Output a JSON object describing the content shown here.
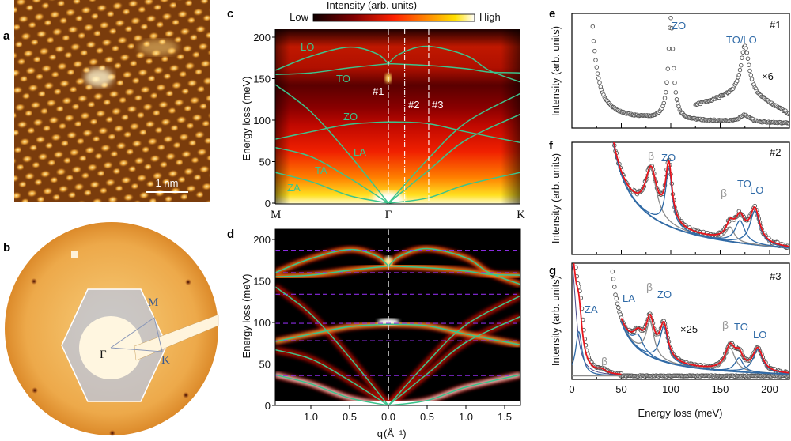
{
  "panel_labels": {
    "a": "a",
    "b": "b",
    "c": "c",
    "d": "d",
    "e": "e",
    "f": "f",
    "g": "g"
  },
  "panel_a": {
    "scale_bar_label": "1 nm"
  },
  "panel_b": {
    "gamma": "Γ",
    "m": "M",
    "k": "K"
  },
  "colors": {
    "dispersion": "#3cc48c",
    "fit": "#e8141c",
    "component": "#2f6aa7",
    "beta": "#8a8a8a",
    "reference": "#8a2be2"
  },
  "chart_data": [
    {
      "id": "c",
      "type": "heatmap",
      "title": "Intensity (arb. units)",
      "colorbar_low": "Low",
      "colorbar_high": "High",
      "ylabel": "Energy loss (meV)",
      "ylim": [
        0,
        210
      ],
      "yticks": [
        "0",
        "50",
        "100",
        "150",
        "200"
      ],
      "x_labels": [
        "M",
        "Γ",
        "K"
      ],
      "q_range": [
        -1.46,
        1.7
      ],
      "branches": [
        {
          "name": "LO",
          "q": [
            -1.46,
            -1.0,
            -0.5,
            -0.15,
            0,
            0.15,
            0.5,
            1.0,
            1.3,
            1.7
          ],
          "E": [
            160,
            177,
            188,
            180,
            168,
            180,
            189,
            178,
            160,
            146
          ]
        },
        {
          "name": "TO",
          "q": [
            -1.46,
            -1.0,
            -0.5,
            0,
            0.5,
            1.0,
            1.3,
            1.7
          ],
          "E": [
            155,
            157,
            163,
            168,
            166,
            162,
            158,
            157
          ]
        },
        {
          "name": "ZO",
          "q": [
            -1.46,
            -1.0,
            -0.5,
            0,
            0.5,
            1.0,
            1.7
          ],
          "E": [
            77,
            86,
            95,
            98,
            96,
            86,
            73
          ]
        },
        {
          "name": "LA",
          "q": [
            -1.46,
            -1.0,
            -0.5,
            0,
            0.5,
            1.0,
            1.7
          ],
          "E": [
            143,
            110,
            58,
            0,
            52,
            97,
            132
          ]
        },
        {
          "name": "TA",
          "q": [
            -1.46,
            -1.0,
            -0.5,
            0,
            0.5,
            1.0,
            1.7
          ],
          "E": [
            67,
            56,
            30,
            0,
            38,
            76,
            107
          ]
        },
        {
          "name": "ZA",
          "q": [
            -1.46,
            -1.0,
            -0.5,
            0,
            0.5,
            1.0,
            1.7
          ],
          "E": [
            37,
            26,
            9,
            0,
            6,
            22,
            37
          ]
        }
      ],
      "cut_lines": [
        {
          "label": "#1",
          "q": 0
        },
        {
          "label": "#2",
          "q": 0.21
        },
        {
          "label": "#3",
          "q": 0.52
        }
      ]
    },
    {
      "id": "d",
      "type": "heatmap",
      "ylabel": "Energy loss (meV)",
      "ylim": [
        0,
        210
      ],
      "yticks": [
        "0",
        "50",
        "100",
        "150",
        "200"
      ],
      "xlabel_symbol": "q",
      "xlabel_unit": " (Å⁻¹)",
      "xticks": [
        {
          "q": -1.0,
          "label": "1.0"
        },
        {
          "q": -0.5,
          "label": "0.5"
        },
        {
          "q": 0,
          "label": "0.0"
        },
        {
          "q": 0.5,
          "label": "0.5"
        },
        {
          "q": 1.0,
          "label": "1.0"
        },
        {
          "q": 1.5,
          "label": "1.5"
        }
      ],
      "reference_energies": [
        187,
        160,
        134,
        99,
        78,
        36
      ]
    },
    {
      "id": "e",
      "type": "scatter",
      "label": "#1",
      "ylabel": "Intensity (arb. units)",
      "xlim": [
        0,
        220
      ],
      "peak_labels": [
        "ZO",
        "TO/LO"
      ],
      "scale_note": "×6",
      "peaks": [
        {
          "name": "ZO",
          "center": 100
        },
        {
          "name": "TO/LO",
          "center": 175
        }
      ]
    },
    {
      "id": "f",
      "type": "line",
      "label": "#2",
      "ylabel": "Intensity (arb. units)",
      "xlim": [
        0,
        220
      ],
      "peaks": [
        {
          "name": "β",
          "kind": "beta",
          "center": 80,
          "width": 7,
          "amp": 0.42
        },
        {
          "name": "ZO",
          "kind": "phonon",
          "center": 98,
          "width": 4,
          "amp": 0.52
        },
        {
          "name": "β",
          "kind": "beta",
          "center": 160,
          "width": 5,
          "amp": 0.13
        },
        {
          "name": "TO",
          "kind": "phonon",
          "center": 170,
          "width": 6,
          "amp": 0.2
        },
        {
          "name": "LO",
          "kind": "phonon",
          "center": 185,
          "width": 6,
          "amp": 0.3
        }
      ]
    },
    {
      "id": "g",
      "type": "line",
      "label": "#3",
      "ylabel": "Intensity (arb. units)",
      "xlabel": "Energy loss (meV)",
      "xlim": [
        0,
        220
      ],
      "xticks": [
        "0",
        "50",
        "100",
        "150",
        "200"
      ],
      "scale_note": "×25",
      "low_peaks": [
        {
          "name": "ZA",
          "kind": "phonon",
          "center": 7,
          "width": 4,
          "amp": 0.38
        },
        {
          "name": "β",
          "kind": "beta",
          "center": 30,
          "width": 5,
          "amp": 0.03
        }
      ],
      "peaks": [
        {
          "name": "LA",
          "kind": "phonon",
          "center": 67,
          "width": 6,
          "amp": 0.12
        },
        {
          "name": "β",
          "kind": "beta",
          "center": 79,
          "width": 5,
          "amp": 0.3
        },
        {
          "name": "ZO",
          "kind": "phonon",
          "center": 93,
          "width": 5,
          "amp": 0.3
        },
        {
          "name": "β",
          "kind": "beta",
          "center": 160,
          "width": 6,
          "amp": 0.2
        },
        {
          "name": "TO",
          "kind": "phonon",
          "center": 169,
          "width": 5,
          "amp": 0.12
        },
        {
          "name": "LO",
          "kind": "phonon",
          "center": 188,
          "width": 6,
          "amp": 0.2
        }
      ]
    }
  ]
}
